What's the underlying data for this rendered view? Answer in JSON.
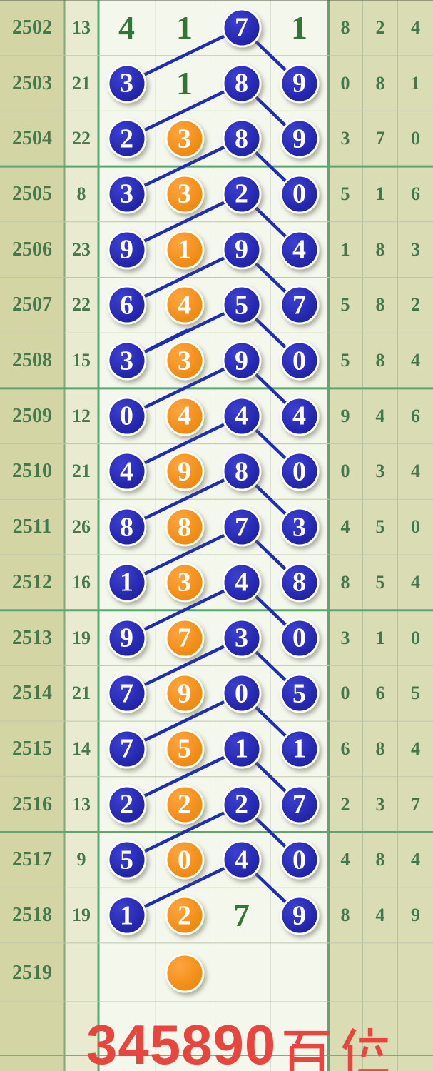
{
  "chart_data": {
    "type": "table",
    "title": "345890百位",
    "footer_digits": "345890",
    "footer_suffix": "百位",
    "footer_label": "345890百位",
    "cell_legend": {
      "b": "blue-ball",
      "o": "orange-ball",
      "g": "green-text"
    },
    "line_rule": "each row's column-3 blue ball connects to next row's column-1 and column-4 blue balls",
    "separators_after_periods": [
      "2504",
      "2508",
      "2512",
      "2516"
    ],
    "rows": [
      {
        "period": "2502",
        "sum": "13",
        "balls": [
          "g:4",
          "g:1",
          "b:7",
          "g:1"
        ],
        "right": [
          "8",
          "2",
          "4"
        ]
      },
      {
        "period": "2503",
        "sum": "21",
        "balls": [
          "b:3",
          "g:1",
          "b:8",
          "b:9"
        ],
        "right": [
          "0",
          "8",
          "1"
        ]
      },
      {
        "period": "2504",
        "sum": "22",
        "balls": [
          "b:2",
          "o:3",
          "b:8",
          "b:9"
        ],
        "right": [
          "3",
          "7",
          "0"
        ]
      },
      {
        "period": "2505",
        "sum": "8",
        "balls": [
          "b:3",
          "o:3",
          "b:2",
          "b:0"
        ],
        "right": [
          "5",
          "1",
          "6"
        ]
      },
      {
        "period": "2506",
        "sum": "23",
        "balls": [
          "b:9",
          "o:1",
          "b:9",
          "b:4"
        ],
        "right": [
          "1",
          "8",
          "3"
        ]
      },
      {
        "period": "2507",
        "sum": "22",
        "balls": [
          "b:6",
          "o:4",
          "b:5",
          "b:7"
        ],
        "right": [
          "5",
          "8",
          "2"
        ]
      },
      {
        "period": "2508",
        "sum": "15",
        "balls": [
          "b:3",
          "o:3",
          "b:9",
          "b:0"
        ],
        "right": [
          "5",
          "8",
          "4"
        ]
      },
      {
        "period": "2509",
        "sum": "12",
        "balls": [
          "b:0",
          "o:4",
          "b:4",
          "b:4"
        ],
        "right": [
          "9",
          "4",
          "6"
        ]
      },
      {
        "period": "2510",
        "sum": "21",
        "balls": [
          "b:4",
          "o:9",
          "b:8",
          "b:0"
        ],
        "right": [
          "0",
          "3",
          "4"
        ]
      },
      {
        "period": "2511",
        "sum": "26",
        "balls": [
          "b:8",
          "o:8",
          "b:7",
          "b:3"
        ],
        "right": [
          "4",
          "5",
          "0"
        ]
      },
      {
        "period": "2512",
        "sum": "16",
        "balls": [
          "b:1",
          "o:3",
          "b:4",
          "b:8"
        ],
        "right": [
          "8",
          "5",
          "4"
        ]
      },
      {
        "period": "2513",
        "sum": "19",
        "balls": [
          "b:9",
          "o:7",
          "b:3",
          "b:0"
        ],
        "right": [
          "3",
          "1",
          "0"
        ]
      },
      {
        "period": "2514",
        "sum": "21",
        "balls": [
          "b:7",
          "o:9",
          "b:0",
          "b:5"
        ],
        "right": [
          "0",
          "6",
          "5"
        ]
      },
      {
        "period": "2515",
        "sum": "14",
        "balls": [
          "b:7",
          "o:5",
          "b:1",
          "b:1"
        ],
        "right": [
          "6",
          "8",
          "4"
        ]
      },
      {
        "period": "2516",
        "sum": "13",
        "balls": [
          "b:2",
          "o:2",
          "b:2",
          "b:7"
        ],
        "right": [
          "2",
          "3",
          "7"
        ]
      },
      {
        "period": "2517",
        "sum": "9",
        "balls": [
          "b:5",
          "o:0",
          "b:4",
          "b:0"
        ],
        "right": [
          "4",
          "8",
          "4"
        ]
      },
      {
        "period": "2518",
        "sum": "19",
        "balls": [
          "b:1",
          "o:2",
          "g:7",
          "b:9"
        ],
        "right": [
          "8",
          "4",
          "9"
        ]
      },
      {
        "period": "2519",
        "sum": "",
        "balls": [
          null,
          "o:",
          null,
          null
        ],
        "right": [
          "",
          "",
          ""
        ]
      }
    ],
    "colors": {
      "blue_ball": "#2629b6",
      "orange_ball": "#f5921d",
      "trend_line": "#1f2db4",
      "green_text": "#45784b",
      "mid_green_text": "#357437",
      "red_footer": "#e8453f",
      "period_col_bg": "#d3d6a4",
      "sum_col_bg": "#e8ebcf",
      "mid_bg": "#f3f7ec",
      "right_col_bg": "#dadcb4",
      "grid_green": "#62a471"
    }
  }
}
